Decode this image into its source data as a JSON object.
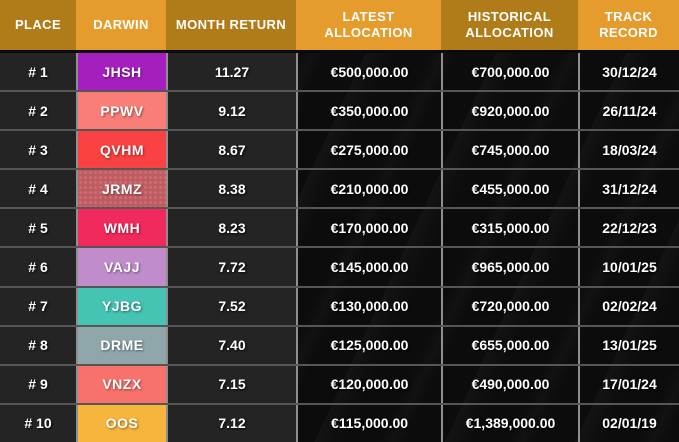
{
  "table": {
    "columns": [
      {
        "label": "PLACE",
        "tone": "dark"
      },
      {
        "label": "DARWIN",
        "tone": "bright"
      },
      {
        "label": "MONTH RETURN",
        "tone": "dark"
      },
      {
        "label": "LATEST ALLOCATION",
        "tone": "bright"
      },
      {
        "label": "HISTORICAL ALLOCATION",
        "tone": "dark"
      },
      {
        "label": "TRACK RECORD",
        "tone": "bright"
      }
    ],
    "rows": [
      {
        "place": "# 1",
        "darwin": "JHSH",
        "badge_color": "#A51FBE",
        "badge_texture": "flat",
        "month_return": "11.27",
        "latest_allocation": "€500,000.00",
        "historical_allocation": "€700,000.00",
        "track_record": "30/12/24"
      },
      {
        "place": "# 2",
        "darwin": "PPWV",
        "badge_color": "#F97E77",
        "badge_texture": "flat",
        "month_return": "9.12",
        "latest_allocation": "€350,000.00",
        "historical_allocation": "€920,000.00",
        "track_record": "26/11/24"
      },
      {
        "place": "# 3",
        "darwin": "QVHM",
        "badge_color": "#F94241",
        "badge_texture": "flat",
        "month_return": "8.67",
        "latest_allocation": "€275,000.00",
        "historical_allocation": "€745,000.00",
        "track_record": "18/03/24"
      },
      {
        "place": "# 4",
        "darwin": "JRMZ",
        "badge_color": "#C05B61",
        "badge_texture": "dots",
        "month_return": "8.38",
        "latest_allocation": "€210,000.00",
        "historical_allocation": "€455,000.00",
        "track_record": "31/12/24"
      },
      {
        "place": "# 5",
        "darwin": "WMH",
        "badge_color": "#F02A5C",
        "badge_texture": "flat",
        "month_return": "8.23",
        "latest_allocation": "€170,000.00",
        "historical_allocation": "€315,000.00",
        "track_record": "22/12/23"
      },
      {
        "place": "# 6",
        "darwin": "VAJJ",
        "badge_color": "#C18CCB",
        "badge_texture": "flat",
        "month_return": "7.72",
        "latest_allocation": "€145,000.00",
        "historical_allocation": "€965,000.00",
        "track_record": "10/01/25"
      },
      {
        "place": "# 7",
        "darwin": "YJBG",
        "badge_color": "#45C3B3",
        "badge_texture": "flat",
        "month_return": "7.52",
        "latest_allocation": "€130,000.00",
        "historical_allocation": "€720,000.00",
        "track_record": "02/02/24"
      },
      {
        "place": "# 8",
        "darwin": "DRME",
        "badge_color": "#8FA6AB",
        "badge_texture": "flat",
        "month_return": "7.40",
        "latest_allocation": "€125,000.00",
        "historical_allocation": "€655,000.00",
        "track_record": "13/01/25"
      },
      {
        "place": "# 9",
        "darwin": "VNZX",
        "badge_color": "#F9716C",
        "badge_texture": "flat",
        "month_return": "7.15",
        "latest_allocation": "€120,000.00",
        "historical_allocation": "€490,000.00",
        "track_record": "17/01/24"
      },
      {
        "place": "# 10",
        "darwin": "OOS",
        "badge_color": "#F6B53C",
        "badge_texture": "flat",
        "month_return": "7.12",
        "latest_allocation": "€115,000.00",
        "historical_allocation": "€1,389,000.00",
        "track_record": "02/01/19"
      }
    ]
  },
  "colors": {
    "header_dark": "#B07C19",
    "header_bright": "#E69C2D",
    "row_panel": "#252525",
    "row_glass": "#0a0a0a",
    "vertical_line": "#8f8f8f",
    "horizontal_line": "#565656",
    "text": "#ffffff"
  },
  "chart_data": {
    "type": "table",
    "title": "DARWIN monthly return leaderboard",
    "columns": [
      "PLACE",
      "DARWIN",
      "MONTH RETURN",
      "LATEST ALLOCATION",
      "HISTORICAL ALLOCATION",
      "TRACK RECORD"
    ],
    "rows": [
      [
        "# 1",
        "JHSH",
        11.27,
        "€500,000.00",
        "€700,000.00",
        "30/12/24"
      ],
      [
        "# 2",
        "PPWV",
        9.12,
        "€350,000.00",
        "€920,000.00",
        "26/11/24"
      ],
      [
        "# 3",
        "QVHM",
        8.67,
        "€275,000.00",
        "€745,000.00",
        "18/03/24"
      ],
      [
        "# 4",
        "JRMZ",
        8.38,
        "€210,000.00",
        "€455,000.00",
        "31/12/24"
      ],
      [
        "# 5",
        "WMH",
        8.23,
        "€170,000.00",
        "€315,000.00",
        "22/12/23"
      ],
      [
        "# 6",
        "VAJJ",
        7.72,
        "€145,000.00",
        "€965,000.00",
        "10/01/25"
      ],
      [
        "# 7",
        "YJBG",
        7.52,
        "€130,000.00",
        "€720,000.00",
        "02/02/24"
      ],
      [
        "# 8",
        "DRME",
        7.4,
        "€125,000.00",
        "€655,000.00",
        "13/01/25"
      ],
      [
        "# 9",
        "VNZX",
        7.15,
        "€120,000.00",
        "€490,000.00",
        "17/01/24"
      ],
      [
        "# 10",
        "OOS",
        7.12,
        "€115,000.00",
        "€1,389,000.00",
        "02/01/19"
      ]
    ]
  }
}
